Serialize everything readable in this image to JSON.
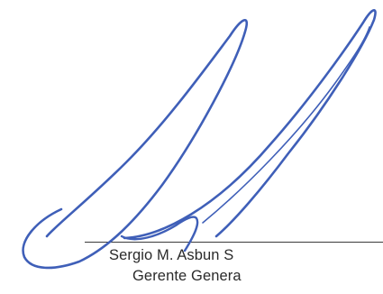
{
  "signature_block": {
    "name": "Sergio M. Asbun S",
    "title": "Gerente Genera"
  },
  "ink_color": "#3f5fb8",
  "line_color": "#3a3a3a",
  "text_color": "#2a2a2a"
}
